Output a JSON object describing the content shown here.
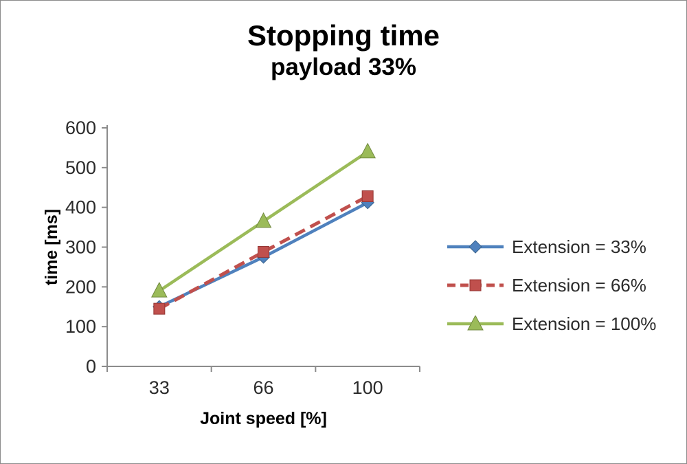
{
  "window": {
    "background": "#ffffff",
    "border_color": "#8a8a8a"
  },
  "chart_data": {
    "type": "line",
    "title": "Stopping time",
    "subtitle": "payload 33%",
    "xlabel": "Joint speed [%]",
    "ylabel": "time [ms]",
    "categories": [
      "33",
      "66",
      "100"
    ],
    "series": [
      {
        "name": "Extension = 33%",
        "values": [
          150,
          275,
          412
        ],
        "color": "#4F81BD",
        "edge_color": "#3A648E",
        "marker": "diamond",
        "line_style": "solid"
      },
      {
        "name": "Extension = 66%",
        "values": [
          145,
          288,
          428
        ],
        "color": "#C0504D",
        "edge_color": "#943634",
        "marker": "square",
        "line_style": "dashed"
      },
      {
        "name": "Extension = 100%",
        "values": [
          190,
          365,
          540
        ],
        "color": "#9BBB59",
        "edge_color": "#71893F",
        "marker": "triangle",
        "line_style": "solid"
      }
    ],
    "ylim": [
      0,
      600
    ],
    "y_tick_step": 100,
    "grid": false,
    "legend_position": "right",
    "axis_color": "#8c8c8c",
    "text_color": "#2b2b2b"
  }
}
